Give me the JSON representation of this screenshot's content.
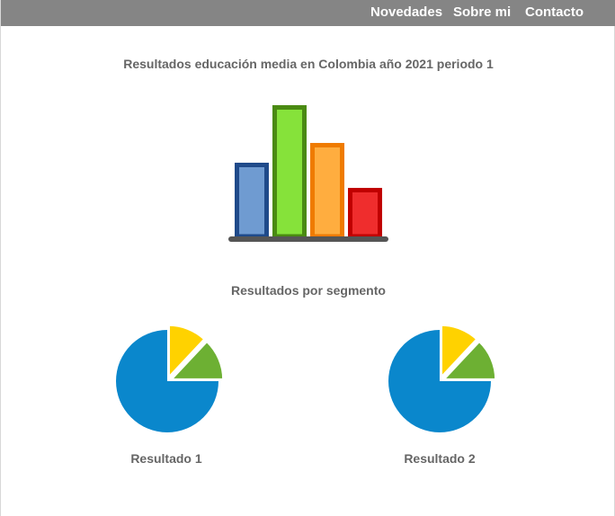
{
  "nav": {
    "items": [
      {
        "label": "Novedades"
      },
      {
        "label": "Sobre mi"
      },
      {
        "label": "Contacto"
      }
    ]
  },
  "main": {
    "title": "Resultados educación media en Colombia año 2021 periodo 1",
    "segment_title": "Resultados por segmento",
    "pie_captions": [
      "Resultado 1",
      "Resultado 2"
    ]
  },
  "colors": {
    "topbar": "#858585",
    "bar_blue_fill": "#6f9bd1",
    "bar_blue_edge": "#1f4a8a",
    "bar_green_fill": "#86e23a",
    "bar_green_edge": "#4a8a12",
    "bar_orange_fill": "#ffad3f",
    "bar_orange_edge": "#ef7b00",
    "bar_red_fill": "#ef2d2d",
    "bar_red_edge": "#c00000",
    "baseline": "#555555",
    "pie_blue": "#0a87cc",
    "pie_yellow": "#ffd200",
    "pie_green": "#6db033"
  },
  "chart_data": [
    {
      "type": "bar",
      "categories": [
        "",
        "",
        "",
        ""
      ],
      "values": [
        41,
        73,
        52,
        27
      ],
      "ylim": [
        0,
        75
      ],
      "grid": false,
      "legend": "none",
      "title": "",
      "xlabel": "",
      "ylabel": ""
    },
    {
      "type": "pie",
      "categories": [
        "",
        "",
        ""
      ],
      "values": [
        75,
        12,
        13
      ],
      "exploded": [
        false,
        true,
        true
      ],
      "title": "",
      "legend": "none"
    },
    {
      "type": "pie",
      "categories": [
        "",
        "",
        ""
      ],
      "values": [
        75,
        12,
        13
      ],
      "exploded": [
        false,
        true,
        true
      ],
      "title": "",
      "legend": "none"
    }
  ]
}
